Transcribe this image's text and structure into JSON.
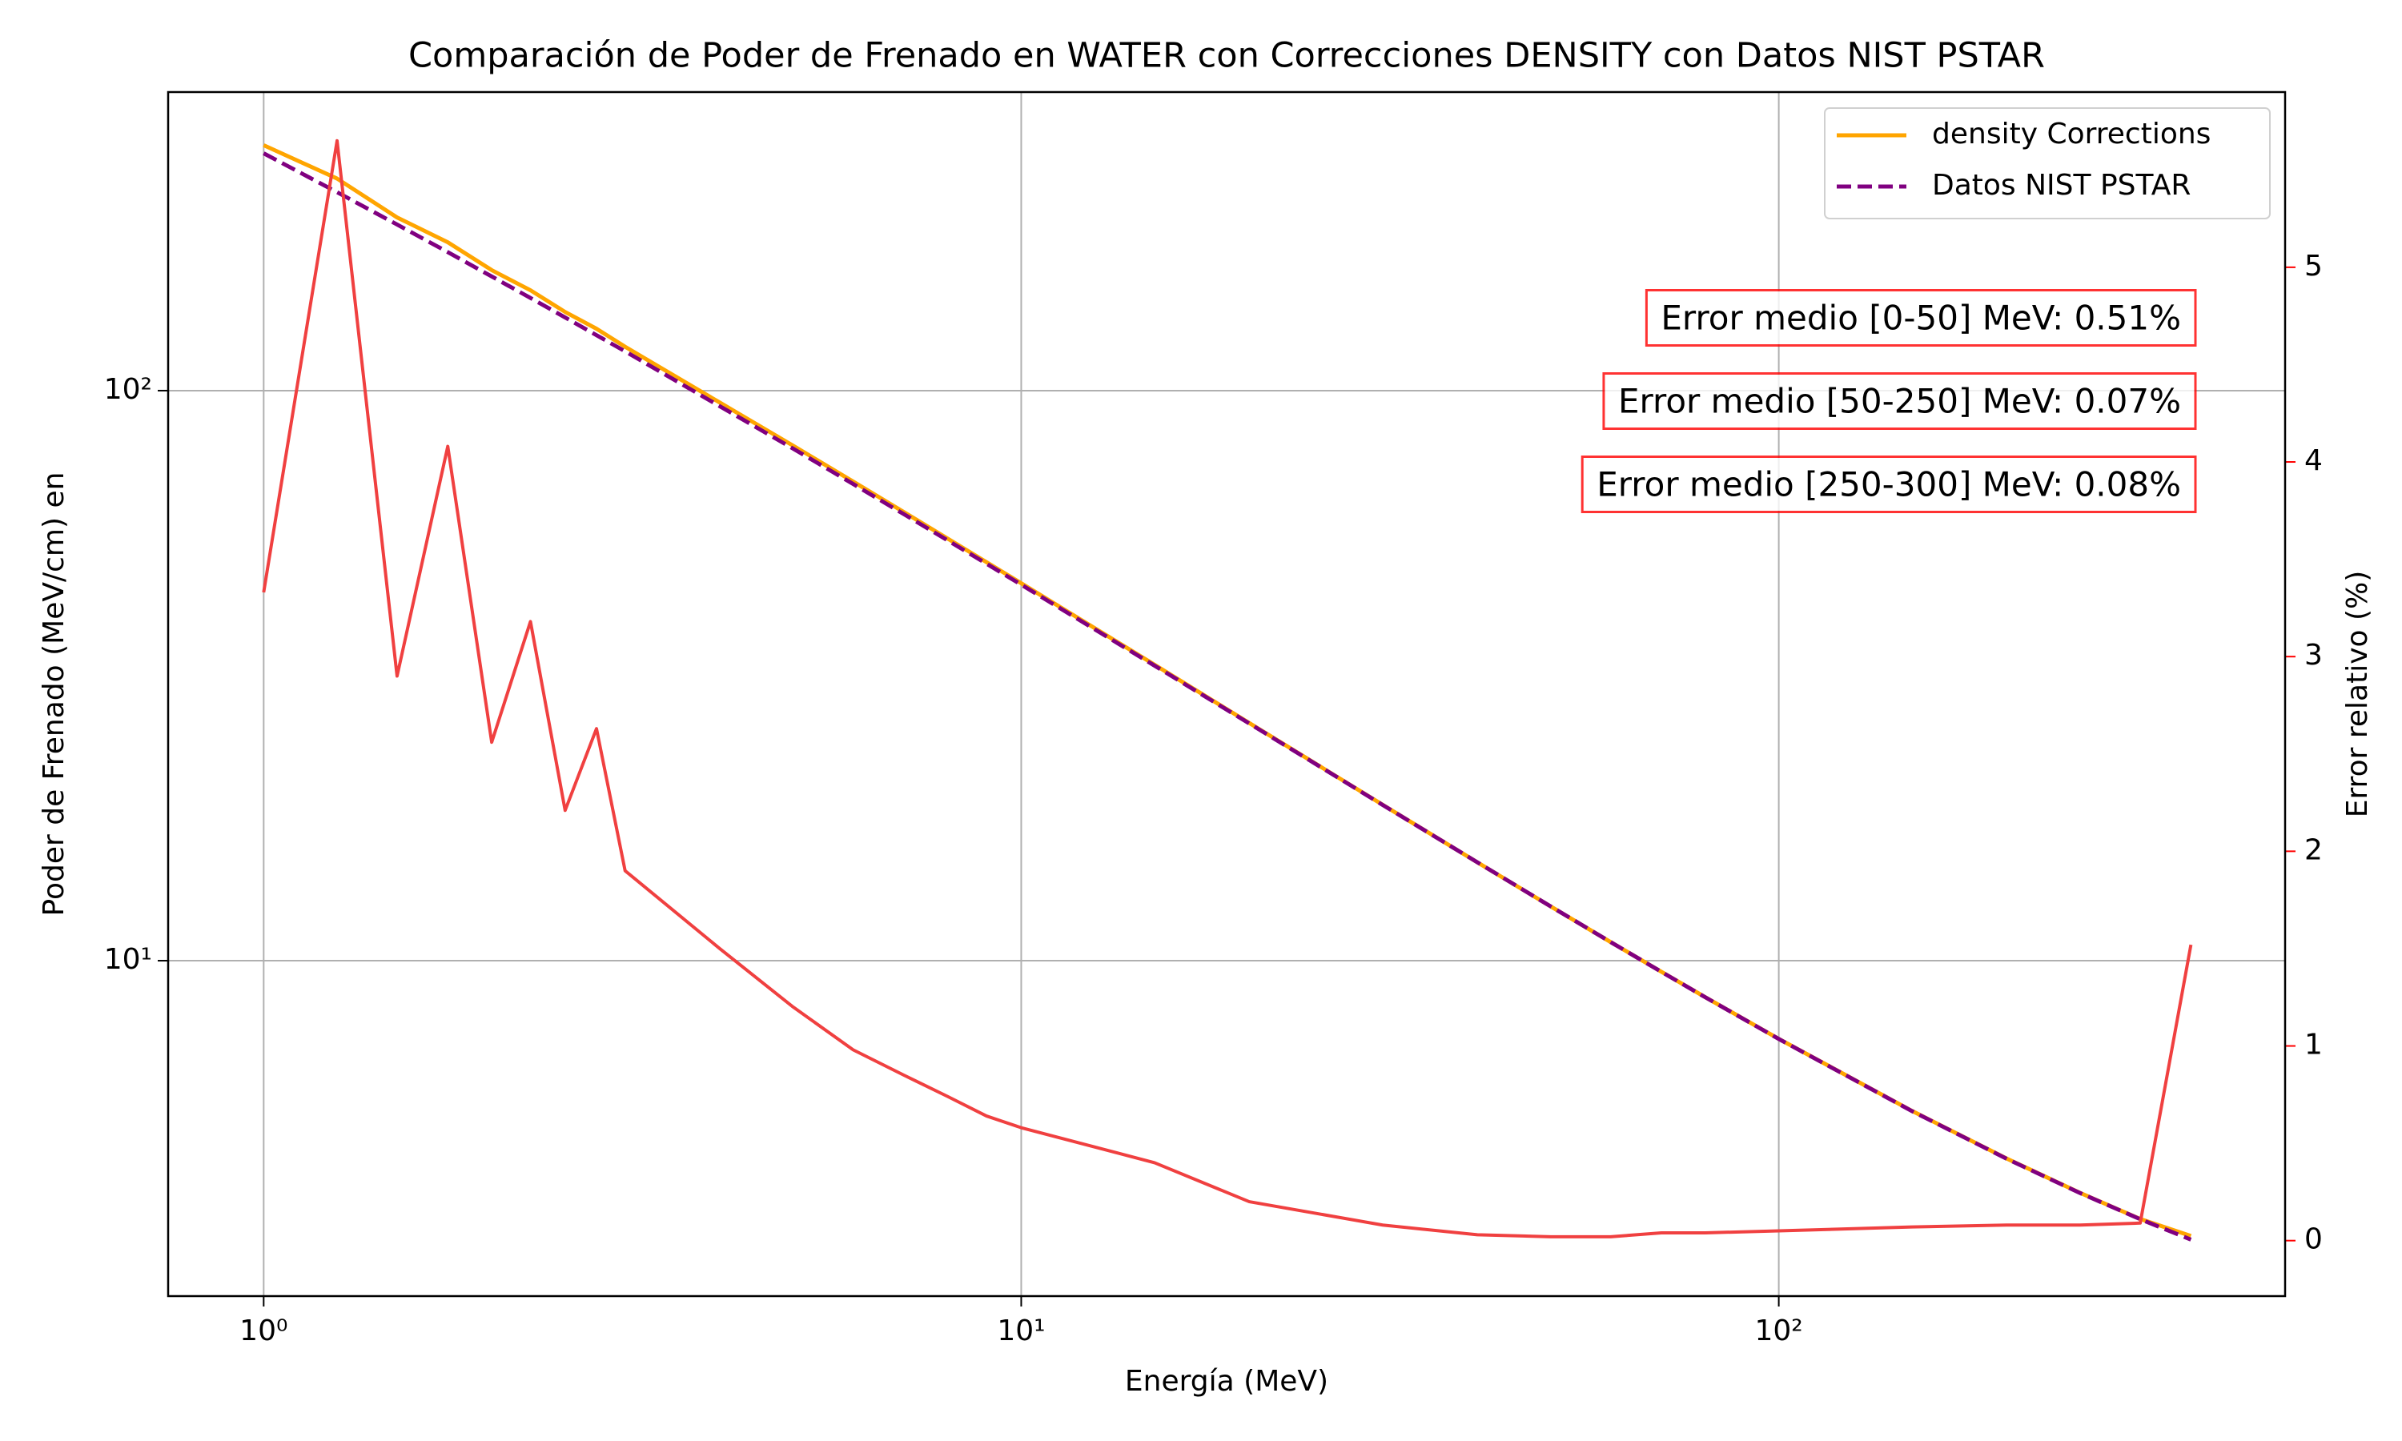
{
  "chart_data": {
    "type": "line",
    "title": "Comparación de Poder de Frenado en WATER con Correcciones DENSITY con Datos NIST PSTAR",
    "x_label": "Energía (MeV)",
    "y_label": "Poder de Frenado (MeV/cm) en",
    "y2_label": "Error relativo (%)",
    "x": [
      1,
      1.25,
      1.5,
      1.75,
      2,
      2.25,
      2.5,
      2.75,
      3,
      4,
      5,
      6,
      7,
      8,
      9,
      10,
      15,
      20,
      30,
      40,
      50,
      60,
      70,
      80,
      100,
      150,
      200,
      250,
      300,
      350
    ],
    "series": [
      {
        "name": "density Corrections",
        "color": "#ffa500",
        "linestyle": "solid",
        "values": [
          269.5,
          235.5,
          201.3,
          182.1,
          162.7,
          150.0,
          137.4,
          128.4,
          119.4,
          95.3,
          80.06,
          69.25,
          61.23,
          55.0,
          50.01,
          45.93,
          33.05,
          26.12,
          18.77,
          14.88,
          12.45,
          10.78,
          9.563,
          8.628,
          7.293,
          5.449,
          4.496,
          3.914,
          3.523,
          3.29
        ]
      },
      {
        "name": "Datos NIST PSTAR",
        "color": "#800080",
        "linestyle": "dashed",
        "values": [
          260.8,
          222.9,
          195.6,
          175.0,
          158.6,
          145.4,
          134.4,
          125.1,
          117.2,
          93.9,
          79.11,
          68.58,
          60.71,
          54.6,
          49.69,
          45.67,
          32.92,
          26.07,
          18.76,
          14.88,
          12.45,
          10.78,
          9.559,
          8.625,
          7.289,
          5.445,
          4.492,
          3.911,
          3.52,
          3.241
        ]
      },
      {
        "color": "#f04040",
        "axis": "y2",
        "linestyle": "solid",
        "values": [
          3.33,
          5.65,
          2.9,
          4.08,
          2.56,
          3.18,
          2.21,
          2.63,
          1.9,
          1.5,
          1.2,
          0.98,
          0.85,
          0.74,
          0.64,
          0.58,
          0.4,
          0.2,
          0.08,
          0.03,
          0.02,
          0.02,
          0.04,
          0.04,
          0.05,
          0.07,
          0.08,
          0.08,
          0.09,
          1.52
        ]
      }
    ],
    "xscale": "log",
    "yscale": "log",
    "xlim": [
      0.748,
      466
    ],
    "ylim": [
      2.58,
      334
    ],
    "y2lim": [
      -0.285,
      5.9
    ],
    "xticks": [
      {
        "value": 1,
        "label": "10⁰"
      },
      {
        "value": 10,
        "label": "10¹"
      },
      {
        "value": 100,
        "label": "10²"
      }
    ],
    "yticks": [
      {
        "value": 10,
        "label": "10¹"
      },
      {
        "value": 100,
        "label": "10²"
      }
    ],
    "y2ticks": [
      0,
      1,
      2,
      3,
      4,
      5
    ],
    "y2_color": "#ff0000",
    "grid": true,
    "legend": "upper right",
    "annotations": [
      "Error medio [0-50] MeV: 0.51%",
      "Error medio [50-250] MeV: 0.07%",
      "Error medio [250-300] MeV: 0.08%"
    ]
  }
}
